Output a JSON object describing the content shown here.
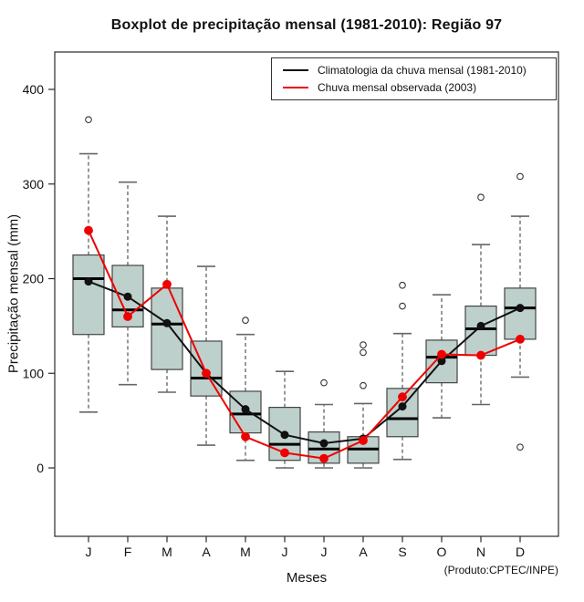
{
  "title": "Boxplot de precipitação mensal (1981-2010): Região 97",
  "annotation": "(Produto:CPTEC/INPE)",
  "legend": {
    "position": "top-right",
    "items": [
      {
        "label": "Climatologia da chuva mensal (1981-2010)",
        "color": "#111111"
      },
      {
        "label": "Chuva mensal observada (2003)",
        "color": "#ee0000"
      }
    ]
  },
  "chart_data": {
    "type": "boxplot",
    "title": "Boxplot de precipitação mensal (1981-2010): Região 97",
    "xlabel": "Meses",
    "ylabel": "Precipitação mensal (mm)",
    "categories": [
      "J",
      "F",
      "M",
      "A",
      "M",
      "J",
      "J",
      "A",
      "S",
      "O",
      "N",
      "D"
    ],
    "y_ticks": [
      0,
      100,
      200,
      300,
      400
    ],
    "ylim": [
      0,
      440
    ],
    "grid": false,
    "legend_position": "top-right",
    "box_fill": "#bed0cc",
    "boxplots": [
      {
        "month": "J",
        "whisker_low": 59,
        "q1": 141,
        "median": 200,
        "q3": 225,
        "whisker_high": 332,
        "outliers": [
          368
        ]
      },
      {
        "month": "F",
        "whisker_low": 88,
        "q1": 149,
        "median": 167,
        "q3": 214,
        "whisker_high": 302,
        "outliers": []
      },
      {
        "month": "M",
        "whisker_low": 80,
        "q1": 104,
        "median": 152,
        "q3": 190,
        "whisker_high": 266,
        "outliers": []
      },
      {
        "month": "A",
        "whisker_low": 24,
        "q1": 76,
        "median": 95,
        "q3": 134,
        "whisker_high": 213,
        "outliers": []
      },
      {
        "month": "M",
        "whisker_low": 8,
        "q1": 37,
        "median": 57,
        "q3": 81,
        "whisker_high": 141,
        "outliers": [
          156
        ]
      },
      {
        "month": "J",
        "whisker_low": 0,
        "q1": 8,
        "median": 25,
        "q3": 64,
        "whisker_high": 102,
        "outliers": []
      },
      {
        "month": "J",
        "whisker_low": 0,
        "q1": 5,
        "median": 20,
        "q3": 38,
        "whisker_high": 67,
        "outliers": [
          90
        ]
      },
      {
        "month": "A",
        "whisker_low": 0,
        "q1": 5,
        "median": 20,
        "q3": 33,
        "whisker_high": 68,
        "outliers": [
          87,
          122,
          130
        ]
      },
      {
        "month": "S",
        "whisker_low": 9,
        "q1": 33,
        "median": 52,
        "q3": 84,
        "whisker_high": 142,
        "outliers": [
          171,
          193
        ]
      },
      {
        "month": "O",
        "whisker_low": 53,
        "q1": 90,
        "median": 117,
        "q3": 135,
        "whisker_high": 183,
        "outliers": []
      },
      {
        "month": "N",
        "whisker_low": 67,
        "q1": 119,
        "median": 147,
        "q3": 171,
        "whisker_high": 236,
        "outliers": [
          286
        ]
      },
      {
        "month": "D",
        "whisker_low": 96,
        "q1": 136,
        "median": 169,
        "q3": 190,
        "whisker_high": 266,
        "outliers": [
          22,
          308
        ]
      }
    ],
    "series": [
      {
        "name": "Climatologia da chuva mensal (1981-2010)",
        "type": "line",
        "color": "#111111",
        "values": [
          197,
          181,
          153,
          100,
          62,
          35,
          26,
          31,
          65,
          113,
          150,
          169
        ]
      },
      {
        "name": "Chuva mensal observada (2003)",
        "type": "line",
        "color": "#ee0000",
        "values": [
          251,
          160,
          194,
          100,
          33,
          16,
          10,
          29,
          75,
          120,
          119,
          136
        ]
      }
    ]
  }
}
